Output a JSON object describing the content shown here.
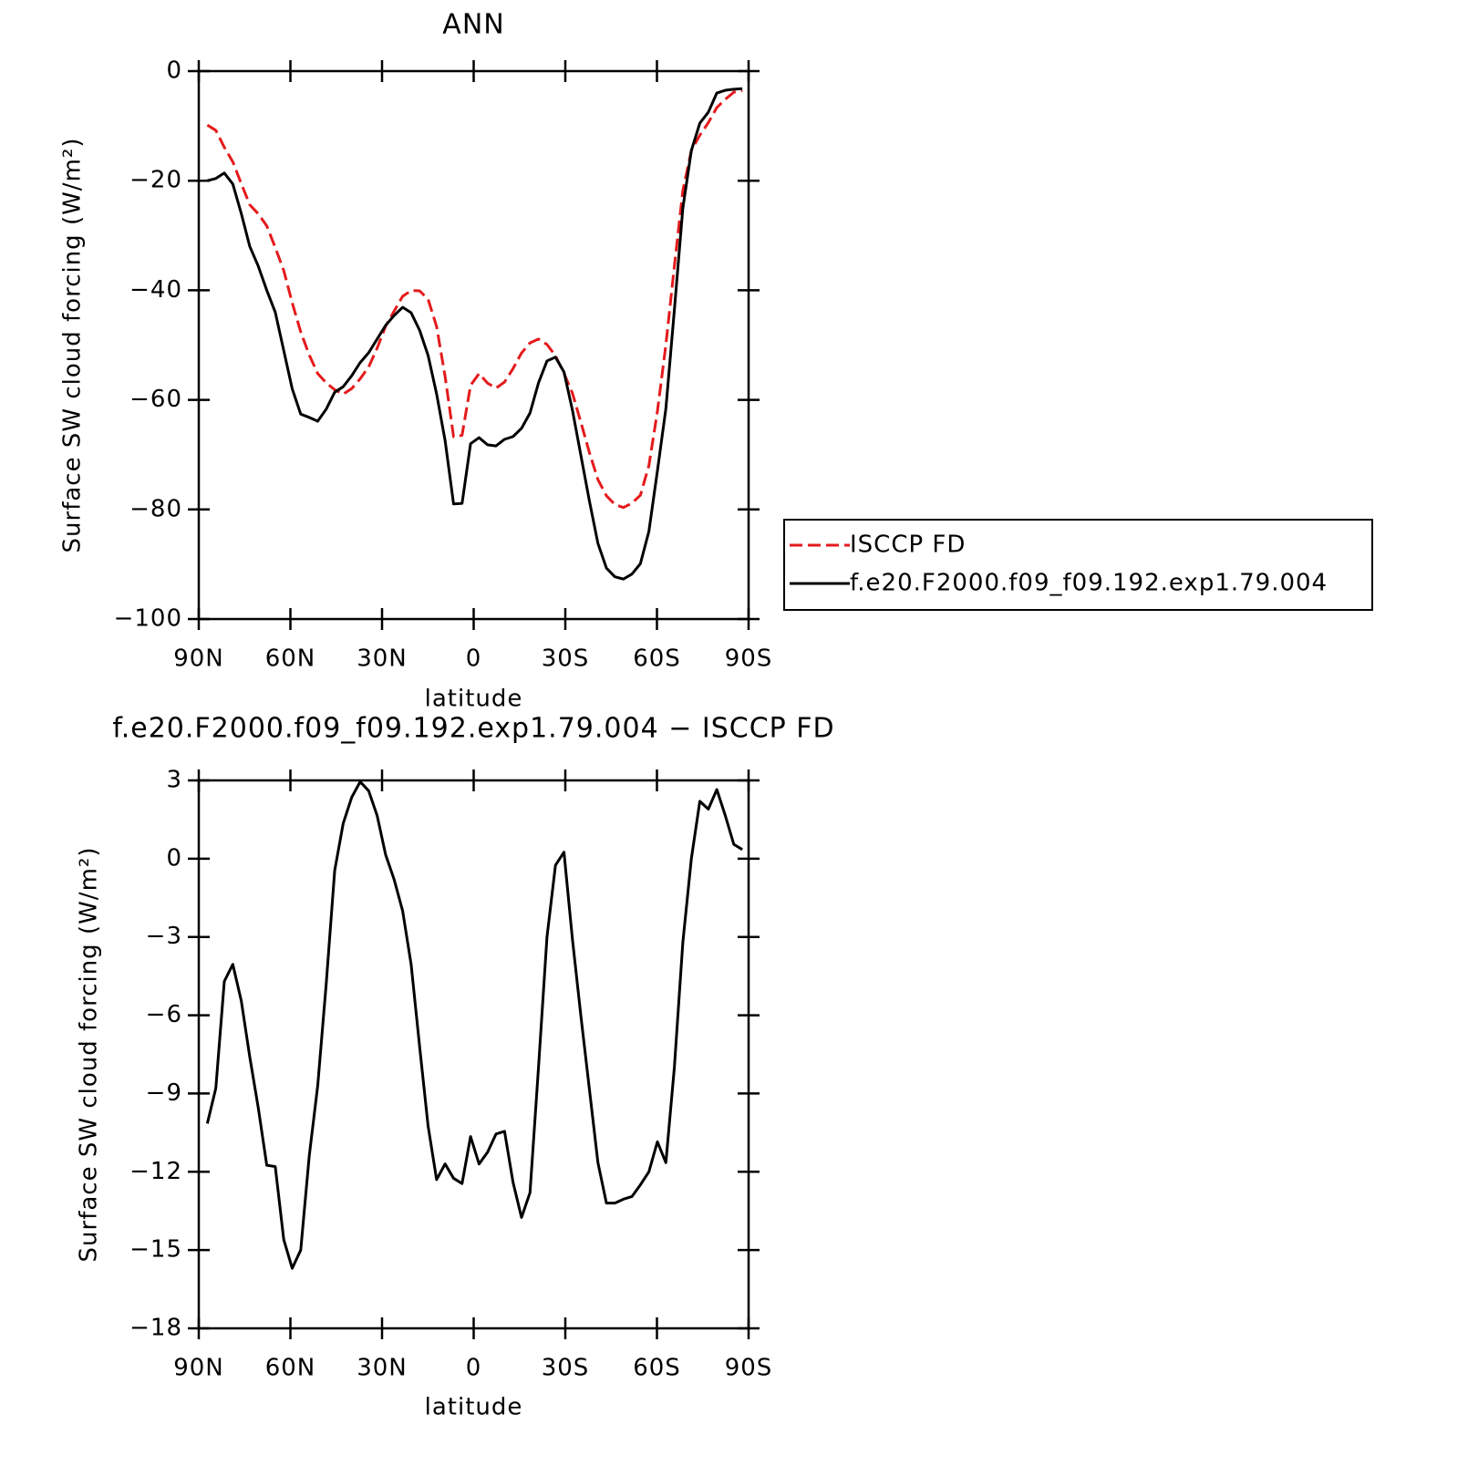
{
  "chart_data": [
    {
      "type": "line",
      "title": "ANN",
      "xlabel": "latitude",
      "ylabel": "Surface SW cloud forcing (W/m²)",
      "x": [
        87.2,
        84.42,
        81.64,
        78.86,
        76.08,
        73.3,
        70.52,
        67.74,
        64.96,
        62.18,
        59.4,
        56.62,
        53.84,
        51.06,
        48.28,
        45.5,
        42.72,
        39.94,
        37.16,
        34.38,
        31.6,
        28.82,
        26.04,
        23.26,
        20.48,
        17.7,
        14.92,
        12.14,
        9.36,
        6.58,
        3.8,
        1.02,
        -1.76,
        -4.54,
        -7.32,
        -10.1,
        -12.88,
        -15.66,
        -18.44,
        -21.22,
        -24,
        -26.78,
        -29.56,
        -32.34,
        -35.12,
        -37.9,
        -40.68,
        -43.46,
        -46.24,
        -49.02,
        -51.8,
        -54.58,
        -57.36,
        -60.14,
        -62.92,
        -65.7,
        -68.48,
        -71.26,
        -74.04,
        -76.82,
        -79.6,
        -82.38,
        -85.16,
        -87.94
      ],
      "series": [
        {
          "name": "ISCCP FD",
          "color": "#e41a1c",
          "linestyle": "dashed",
          "values": [
            -9.85,
            -10.8,
            -13.9,
            -16.55,
            -20.55,
            -24.4,
            -26.05,
            -28.25,
            -32.2,
            -36.4,
            -42.3,
            -47.6,
            -51.8,
            -55.2,
            -56.9,
            -58.15,
            -58.95,
            -57.95,
            -56.15,
            -54.0,
            -50.55,
            -46.55,
            -43.8,
            -41.1,
            -40.05,
            -40.1,
            -41.65,
            -46.6,
            -55.7,
            -66.75,
            -66.45,
            -57.35,
            -55.2,
            -56.95,
            -57.85,
            -56.75,
            -54.3,
            -51.45,
            -49.6,
            -48.9,
            -49.9,
            -51.95,
            -55.15,
            -58.8,
            -64.15,
            -69.65,
            -74.55,
            -77.5,
            -79.1,
            -79.65,
            -78.85,
            -77.4,
            -72.0,
            -62.15,
            -49.95,
            -35.6,
            -21.8,
            -14.5,
            -11.7,
            -9.4,
            -6.65,
            -5.15,
            -3.85,
            -3.55
          ]
        },
        {
          "name": "f.e20.F2000.f09_f09.192.exp1.79.004",
          "color": "#000000",
          "linestyle": "solid",
          "values": [
            -20,
            -19.6,
            -18.6,
            -20.6,
            -26,
            -32,
            -35.6,
            -40,
            -44,
            -51,
            -58,
            -62.6,
            -63.2,
            -63.9,
            -61.7,
            -58.6,
            -57.6,
            -55.6,
            -53.2,
            -51.4,
            -48.9,
            -46.4,
            -44.6,
            -43.1,
            -44.1,
            -47.3,
            -51.9,
            -58.9,
            -67.4,
            -79,
            -78.9,
            -68,
            -66.9,
            -68.2,
            -68.4,
            -67.2,
            -66.7,
            -65.2,
            -62.4,
            -56.9,
            -52.9,
            -52.2,
            -54.9,
            -61.9,
            -70.2,
            -78.5,
            -86.2,
            -90.7,
            -92.3,
            -92.7,
            -91.8,
            -89.9,
            -84,
            -73,
            -61.6,
            -43.6,
            -25,
            -14.5,
            -9.5,
            -7.5,
            -4,
            -3.5,
            -3.3,
            -3.2
          ]
        }
      ],
      "xlim": [
        90,
        -90
      ],
      "xticks": [
        {
          "value": 90,
          "label": "90N"
        },
        {
          "value": 60,
          "label": "60N"
        },
        {
          "value": 30,
          "label": "30N"
        },
        0,
        {
          "value": -30,
          "label": "30S"
        },
        {
          "value": -60,
          "label": "60S"
        },
        {
          "value": -90,
          "label": "90S"
        }
      ],
      "ylim": [
        -100,
        0
      ],
      "yticks": [
        {
          "value": -100,
          "label": "−100"
        },
        {
          "value": -80,
          "label": "−80"
        },
        {
          "value": -60,
          "label": "−60"
        },
        {
          "value": -40,
          "label": "−40"
        },
        {
          "value": -20,
          "label": "−20"
        },
        0
      ],
      "legend": "outside-right"
    },
    {
      "type": "line",
      "title": "f.e20.F2000.f09_f09.192.exp1.79.004 − ISCCP FD",
      "xlabel": "latitude",
      "ylabel": "Surface SW cloud forcing (W/m²)",
      "x": [
        87.2,
        84.42,
        81.64,
        78.86,
        76.08,
        73.3,
        70.52,
        67.74,
        64.96,
        62.18,
        59.4,
        56.62,
        53.84,
        51.06,
        48.28,
        45.5,
        42.72,
        39.94,
        37.16,
        34.38,
        31.6,
        28.82,
        26.04,
        23.26,
        20.48,
        17.7,
        14.92,
        12.14,
        9.36,
        6.58,
        3.8,
        1.02,
        -1.76,
        -4.54,
        -7.32,
        -10.1,
        -12.88,
        -15.66,
        -18.44,
        -21.22,
        -24,
        -26.78,
        -29.56,
        -32.34,
        -35.12,
        -37.9,
        -40.68,
        -43.46,
        -46.24,
        -49.02,
        -51.8,
        -54.58,
        -57.36,
        -60.14,
        -62.92,
        -65.7,
        -68.48,
        -71.26,
        -74.04,
        -76.82,
        -79.6,
        -82.38,
        -85.16,
        -87.94
      ],
      "series": [
        {
          "color": "#000000",
          "linestyle": "solid",
          "values": [
            -10.15,
            -8.8,
            -4.7,
            -4.05,
            -5.45,
            -7.6,
            -9.55,
            -11.75,
            -11.8,
            -14.6,
            -15.7,
            -15.0,
            -11.4,
            -8.7,
            -4.8,
            -0.45,
            1.35,
            2.35,
            2.95,
            2.6,
            1.65,
            0.15,
            -0.8,
            -2.0,
            -4.05,
            -7.2,
            -10.25,
            -12.3,
            -11.7,
            -12.25,
            -12.45,
            -10.65,
            -11.7,
            -11.25,
            -10.55,
            -10.45,
            -12.4,
            -13.75,
            -12.8,
            -8.0,
            -3.0,
            -0.25,
            0.25,
            -3.1,
            -6.05,
            -8.85,
            -11.65,
            -13.2,
            -13.2,
            -13.05,
            -12.95,
            -12.5,
            -12.0,
            -10.85,
            -11.65,
            -8.0,
            -3.2,
            0.0,
            2.2,
            1.9,
            2.65,
            1.65,
            0.55,
            0.35
          ]
        }
      ],
      "xlim": [
        90,
        -90
      ],
      "xticks": [
        {
          "value": 90,
          "label": "90N"
        },
        {
          "value": 60,
          "label": "60N"
        },
        {
          "value": 30,
          "label": "30N"
        },
        0,
        {
          "value": -30,
          "label": "30S"
        },
        {
          "value": -60,
          "label": "60S"
        },
        {
          "value": -90,
          "label": "90S"
        }
      ],
      "ylim": [
        -18,
        3
      ],
      "yticks": [
        {
          "value": -18,
          "label": "−18"
        },
        {
          "value": -15,
          "label": "−15"
        },
        {
          "value": -12,
          "label": "−12"
        },
        {
          "value": -9,
          "label": "−9"
        },
        {
          "value": -6,
          "label": "−6"
        },
        {
          "value": -3,
          "label": "−3"
        },
        0,
        3
      ]
    }
  ]
}
